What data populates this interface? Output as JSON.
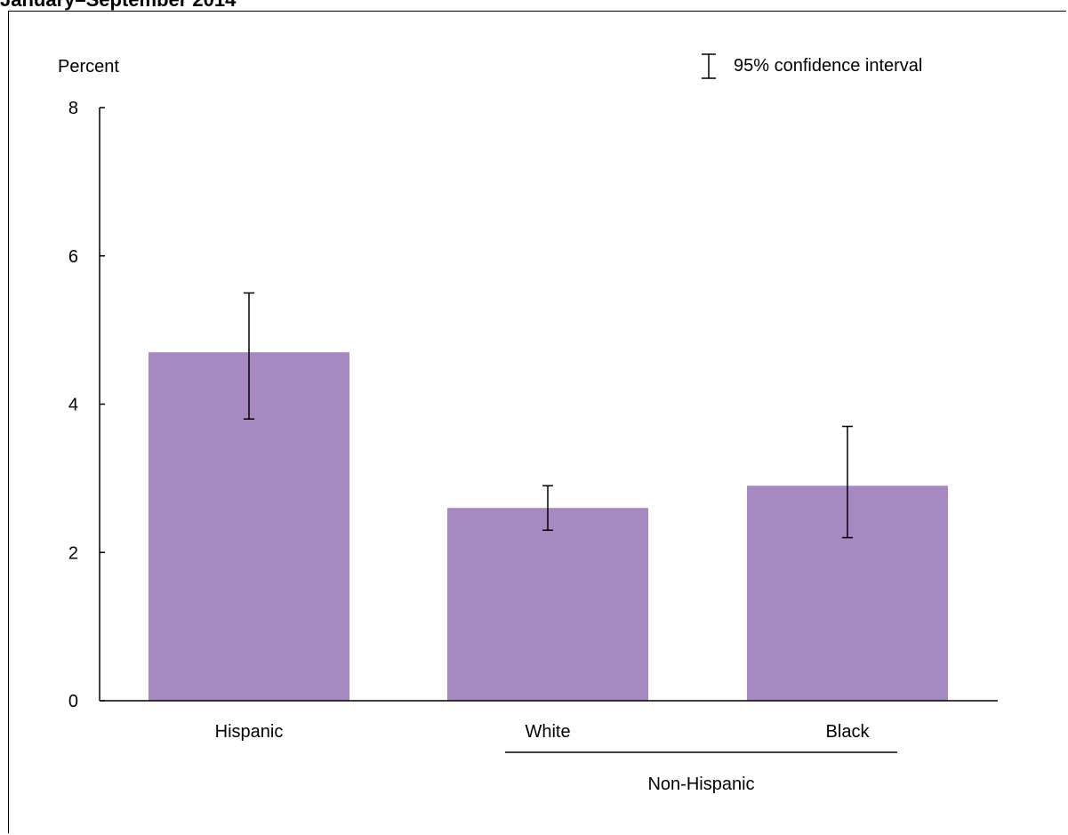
{
  "chart_data": {
    "type": "bar",
    "title": "January–September 2014",
    "ylabel": "Percent",
    "ylim": [
      0,
      8
    ],
    "yticks": [
      "0",
      "2",
      "4",
      "6",
      "8"
    ],
    "categories": [
      "Hispanic",
      "White",
      "Black"
    ],
    "values": [
      4.7,
      2.6,
      2.9
    ],
    "error_low": [
      3.8,
      2.3,
      2.2
    ],
    "error_high": [
      5.5,
      2.9,
      3.7
    ],
    "group_label": "Non-Hispanic",
    "group_members": [
      "White",
      "Black"
    ],
    "legend": "95% confidence interval",
    "legend_position": "top-right",
    "grid": false,
    "bar_color": "#a589c0"
  }
}
